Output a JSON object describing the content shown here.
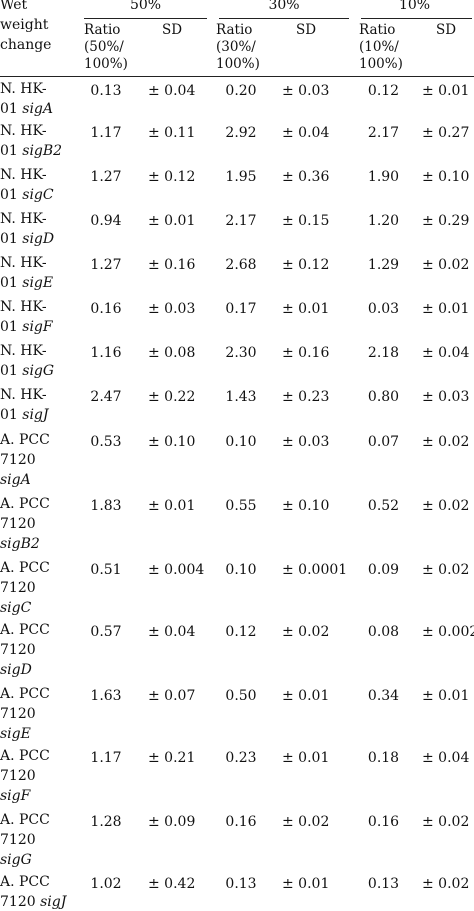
{
  "header": {
    "wet_weight_change": [
      "Wet",
      "weight",
      "change"
    ],
    "groups": [
      {
        "label": "50%",
        "ratio_lines": [
          "Ratio",
          "(50%/",
          "100%)"
        ],
        "sd_label": "SD"
      },
      {
        "label": "30%",
        "ratio_lines": [
          "Ratio",
          "(30%/",
          "100%)"
        ],
        "sd_label": "SD"
      },
      {
        "label": "10%",
        "ratio_lines": [
          "Ratio",
          "(10%/",
          "100%)"
        ],
        "sd_label": "SD"
      }
    ]
  },
  "rows": [
    {
      "name_lines": [
        {
          "text": "N. HK-"
        },
        {
          "text": "01 ",
          "gene": "sigA"
        }
      ],
      "values": [
        {
          "ratio": "0.13",
          "sd": "± 0.04"
        },
        {
          "ratio": "0.20",
          "sd": "± 0.03"
        },
        {
          "ratio": "0.12",
          "sd": "± 0.01"
        }
      ]
    },
    {
      "name_lines": [
        {
          "text": "N. HK-"
        },
        {
          "text": "01 ",
          "gene": "sigB2"
        }
      ],
      "values": [
        {
          "ratio": "1.17",
          "sd": "± 0.11"
        },
        {
          "ratio": "2.92",
          "sd": "± 0.04"
        },
        {
          "ratio": "2.17",
          "sd": "± 0.27"
        }
      ]
    },
    {
      "name_lines": [
        {
          "text": "N. HK-"
        },
        {
          "text": "01 ",
          "gene": "sigC"
        }
      ],
      "values": [
        {
          "ratio": "1.27",
          "sd": "± 0.12"
        },
        {
          "ratio": "1.95",
          "sd": "± 0.36"
        },
        {
          "ratio": "1.90",
          "sd": "± 0.10"
        }
      ]
    },
    {
      "name_lines": [
        {
          "text": "N. HK-"
        },
        {
          "text": "01 ",
          "gene": "sigD"
        }
      ],
      "values": [
        {
          "ratio": "0.94",
          "sd": "± 0.01"
        },
        {
          "ratio": "2.17",
          "sd": "± 0.15"
        },
        {
          "ratio": "1.20",
          "sd": "± 0.29"
        }
      ]
    },
    {
      "name_lines": [
        {
          "text": "N. HK-"
        },
        {
          "text": "01 ",
          "gene": "sigE"
        }
      ],
      "values": [
        {
          "ratio": "1.27",
          "sd": "± 0.16"
        },
        {
          "ratio": "2.68",
          "sd": "± 0.12"
        },
        {
          "ratio": "1.29",
          "sd": "± 0.02"
        }
      ]
    },
    {
      "name_lines": [
        {
          "text": "N. HK-"
        },
        {
          "text": "01 ",
          "gene": "sigF"
        }
      ],
      "values": [
        {
          "ratio": "0.16",
          "sd": "± 0.03"
        },
        {
          "ratio": "0.17",
          "sd": "± 0.01"
        },
        {
          "ratio": "0.03",
          "sd": "± 0.01"
        }
      ]
    },
    {
      "name_lines": [
        {
          "text": "N. HK-"
        },
        {
          "text": "01 ",
          "gene": "sigG"
        }
      ],
      "values": [
        {
          "ratio": "1.16",
          "sd": "± 0.08"
        },
        {
          "ratio": "2.30",
          "sd": "± 0.16"
        },
        {
          "ratio": "2.18",
          "sd": "± 0.04"
        }
      ]
    },
    {
      "name_lines": [
        {
          "text": "N. HK-"
        },
        {
          "text": "01 ",
          "gene": "sigJ"
        }
      ],
      "values": [
        {
          "ratio": "2.47",
          "sd": "± 0.22"
        },
        {
          "ratio": "1.43",
          "sd": "± 0.23"
        },
        {
          "ratio": "0.80",
          "sd": "± 0.03"
        }
      ]
    },
    {
      "name_lines": [
        {
          "text": "A. PCC"
        },
        {
          "text": "7120"
        },
        {
          "text": "",
          "gene": "sigA"
        }
      ],
      "values": [
        {
          "ratio": "0.53",
          "sd": "± 0.10"
        },
        {
          "ratio": "0.10",
          "sd": "± 0.03"
        },
        {
          "ratio": "0.07",
          "sd": "± 0.02"
        }
      ]
    },
    {
      "name_lines": [
        {
          "text": "A. PCC"
        },
        {
          "text": "7120"
        },
        {
          "text": "",
          "gene": "sigB2"
        }
      ],
      "values": [
        {
          "ratio": "1.83",
          "sd": "± 0.01"
        },
        {
          "ratio": "0.55",
          "sd": "± 0.10"
        },
        {
          "ratio": "0.52",
          "sd": "± 0.02"
        }
      ]
    },
    {
      "name_lines": [
        {
          "text": "A. PCC"
        },
        {
          "text": "7120"
        },
        {
          "text": "",
          "gene": "sigC"
        }
      ],
      "values": [
        {
          "ratio": "0.51",
          "sd": "± 0.004"
        },
        {
          "ratio": "0.10",
          "sd": "± 0.0001"
        },
        {
          "ratio": "0.09",
          "sd": "± 0.02"
        }
      ]
    },
    {
      "name_lines": [
        {
          "text": "A. PCC"
        },
        {
          "text": "7120"
        },
        {
          "text": "",
          "gene": "sigD"
        }
      ],
      "values": [
        {
          "ratio": "0.57",
          "sd": "± 0.04"
        },
        {
          "ratio": "0.12",
          "sd": "± 0.02"
        },
        {
          "ratio": "0.08",
          "sd": "± 0.002"
        }
      ]
    },
    {
      "name_lines": [
        {
          "text": "A. PCC"
        },
        {
          "text": "7120"
        },
        {
          "text": "",
          "gene": "sigE"
        }
      ],
      "values": [
        {
          "ratio": "1.63",
          "sd": "± 0.07"
        },
        {
          "ratio": "0.50",
          "sd": "± 0.01"
        },
        {
          "ratio": "0.34",
          "sd": "± 0.01"
        }
      ]
    },
    {
      "name_lines": [
        {
          "text": "A. PCC"
        },
        {
          "text": "7120"
        },
        {
          "text": "",
          "gene": "sigF"
        }
      ],
      "values": [
        {
          "ratio": "1.17",
          "sd": "± 0.21"
        },
        {
          "ratio": "0.23",
          "sd": "± 0.01"
        },
        {
          "ratio": "0.18",
          "sd": "± 0.04"
        }
      ]
    },
    {
      "name_lines": [
        {
          "text": "A. PCC"
        },
        {
          "text": "7120"
        },
        {
          "text": "",
          "gene": "sigG"
        }
      ],
      "values": [
        {
          "ratio": "1.28",
          "sd": "± 0.09"
        },
        {
          "ratio": "0.16",
          "sd": "± 0.02"
        },
        {
          "ratio": "0.16",
          "sd": "± 0.02"
        }
      ]
    },
    {
      "name_lines": [
        {
          "text": "A. PCC"
        },
        {
          "text": "7120 ",
          "gene": "sigJ"
        }
      ],
      "values": [
        {
          "ratio": "1.02",
          "sd": "± 0.42"
        },
        {
          "ratio": "0.13",
          "sd": "± 0.01"
        },
        {
          "ratio": "0.13",
          "sd": "± 0.02"
        }
      ]
    }
  ]
}
